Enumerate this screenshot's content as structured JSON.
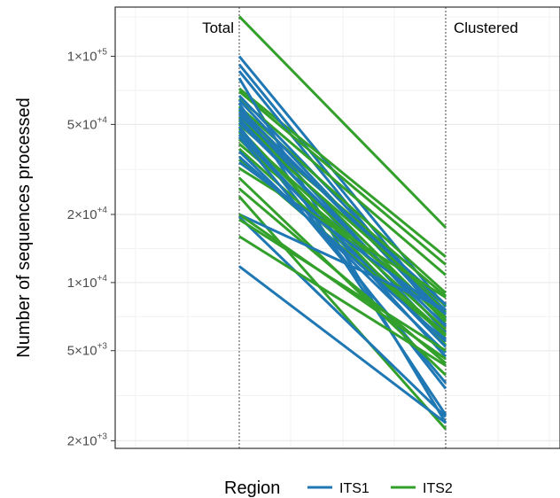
{
  "chart_data": {
    "type": "line",
    "title": "",
    "xlabel": "",
    "ylabel": "Number of sequences processed",
    "y_scale": "log10",
    "ylim": [
      1850,
      165000
    ],
    "stages": [
      "Total",
      "Clustered"
    ],
    "yticks": [
      {
        "value": 100000,
        "mantissa": "1",
        "exponent": "+5"
      },
      {
        "value": 50000,
        "mantissa": "5",
        "exponent": "+4"
      },
      {
        "value": 20000,
        "mantissa": "2",
        "exponent": "+4"
      },
      {
        "value": 10000,
        "mantissa": "1",
        "exponent": "+4"
      },
      {
        "value": 5000,
        "mantissa": "5",
        "exponent": "+3"
      },
      {
        "value": 2000,
        "mantissa": "2",
        "exponent": "+3"
      }
    ],
    "times_symbol": "×",
    "grid": true,
    "legend": {
      "title": "Region",
      "position": "bottom"
    },
    "series": [
      {
        "name": "ITS1",
        "color": "#1f78b4",
        "segments": [
          [
            100000,
            7800
          ],
          [
            92000,
            7000
          ],
          [
            86000,
            6500
          ],
          [
            80000,
            2400
          ],
          [
            67000,
            7500
          ],
          [
            64000,
            6900
          ],
          [
            62000,
            2600
          ],
          [
            59000,
            7200
          ],
          [
            57000,
            6000
          ],
          [
            55000,
            8000
          ],
          [
            53000,
            5600
          ],
          [
            51000,
            6400
          ],
          [
            49000,
            3400
          ],
          [
            47000,
            4700
          ],
          [
            45000,
            5200
          ],
          [
            44000,
            3600
          ],
          [
            38000,
            4900
          ],
          [
            36000,
            5500
          ],
          [
            34000,
            7300
          ],
          [
            20000,
            7600
          ],
          [
            19500,
            2550
          ],
          [
            11800,
            2400
          ]
        ]
      },
      {
        "name": "ITS2",
        "color": "#33a02c",
        "segments": [
          [
            150000,
            17500
          ],
          [
            72000,
            13000
          ],
          [
            70000,
            12000
          ],
          [
            65000,
            10800
          ],
          [
            60000,
            9000
          ],
          [
            58000,
            7400
          ],
          [
            54000,
            6700
          ],
          [
            52000,
            8700
          ],
          [
            50000,
            7900
          ],
          [
            48000,
            5300
          ],
          [
            46000,
            6800
          ],
          [
            43000,
            6200
          ],
          [
            41000,
            7000
          ],
          [
            39000,
            5900
          ],
          [
            35000,
            5800
          ],
          [
            32000,
            8600
          ],
          [
            29000,
            3900
          ],
          [
            26000,
            4400
          ],
          [
            24000,
            2250
          ],
          [
            20000,
            4600
          ],
          [
            19000,
            5000
          ],
          [
            16000,
            4300
          ]
        ]
      }
    ]
  }
}
